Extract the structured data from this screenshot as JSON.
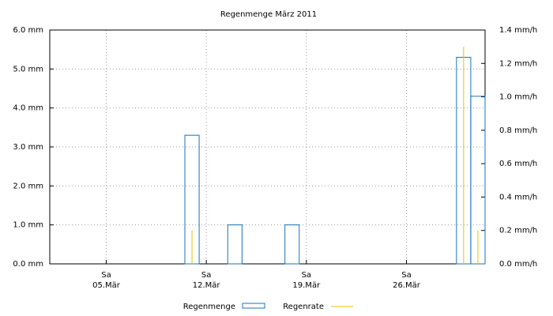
{
  "chart_data": {
    "type": "bar",
    "title": "Regenmenge März 2011",
    "xlim": [
      1.05,
      31.5
    ],
    "xticks": [
      {
        "value": 5,
        "label": "05.Mär",
        "weekday": "Sa"
      },
      {
        "value": 12,
        "label": "12.Mär",
        "weekday": "Sa"
      },
      {
        "value": 19,
        "label": "19.Mär",
        "weekday": "Sa"
      },
      {
        "value": 26,
        "label": "26.Mär",
        "weekday": "Sa"
      }
    ],
    "ylim": [
      0,
      6
    ],
    "yticks": [
      {
        "value": 0,
        "label": "0.0 mm"
      },
      {
        "value": 1,
        "label": "1.0 mm"
      },
      {
        "value": 2,
        "label": "2.0 mm"
      },
      {
        "value": 3,
        "label": "3.0 mm"
      },
      {
        "value": 4,
        "label": "4.0 mm"
      },
      {
        "value": 5,
        "label": "5.0 mm"
      },
      {
        "value": 6,
        "label": "6.0 mm"
      }
    ],
    "y2lim": [
      0,
      1.4
    ],
    "y2ticks": [
      {
        "value": 0,
        "label": "0.0 mm/h"
      },
      {
        "value": 0.2,
        "label": "0.2 mm/h"
      },
      {
        "value": 0.4,
        "label": "0.4 mm/h"
      },
      {
        "value": 0.6,
        "label": "0.6 mm/h"
      },
      {
        "value": 0.8,
        "label": "0.8 mm/h"
      },
      {
        "value": 1.0,
        "label": "1.0 mm/h"
      },
      {
        "value": 1.2,
        "label": "1.2 mm/h"
      },
      {
        "value": 1.4,
        "label": "1.4 mm/h"
      }
    ],
    "grid": true,
    "series": [
      {
        "name": "Regenmenge",
        "type": "bar",
        "color": "#1a73b8",
        "x": [
          11,
          14,
          18,
          30,
          31
        ],
        "values": [
          3.3,
          1.0,
          1.0,
          5.3,
          4.3
        ]
      },
      {
        "name": "Regenrate",
        "type": "impulse",
        "axis": "y2",
        "color": "#e8c400",
        "x": [
          11,
          30,
          31
        ],
        "values": [
          0.2,
          1.3,
          0.2
        ]
      }
    ]
  }
}
